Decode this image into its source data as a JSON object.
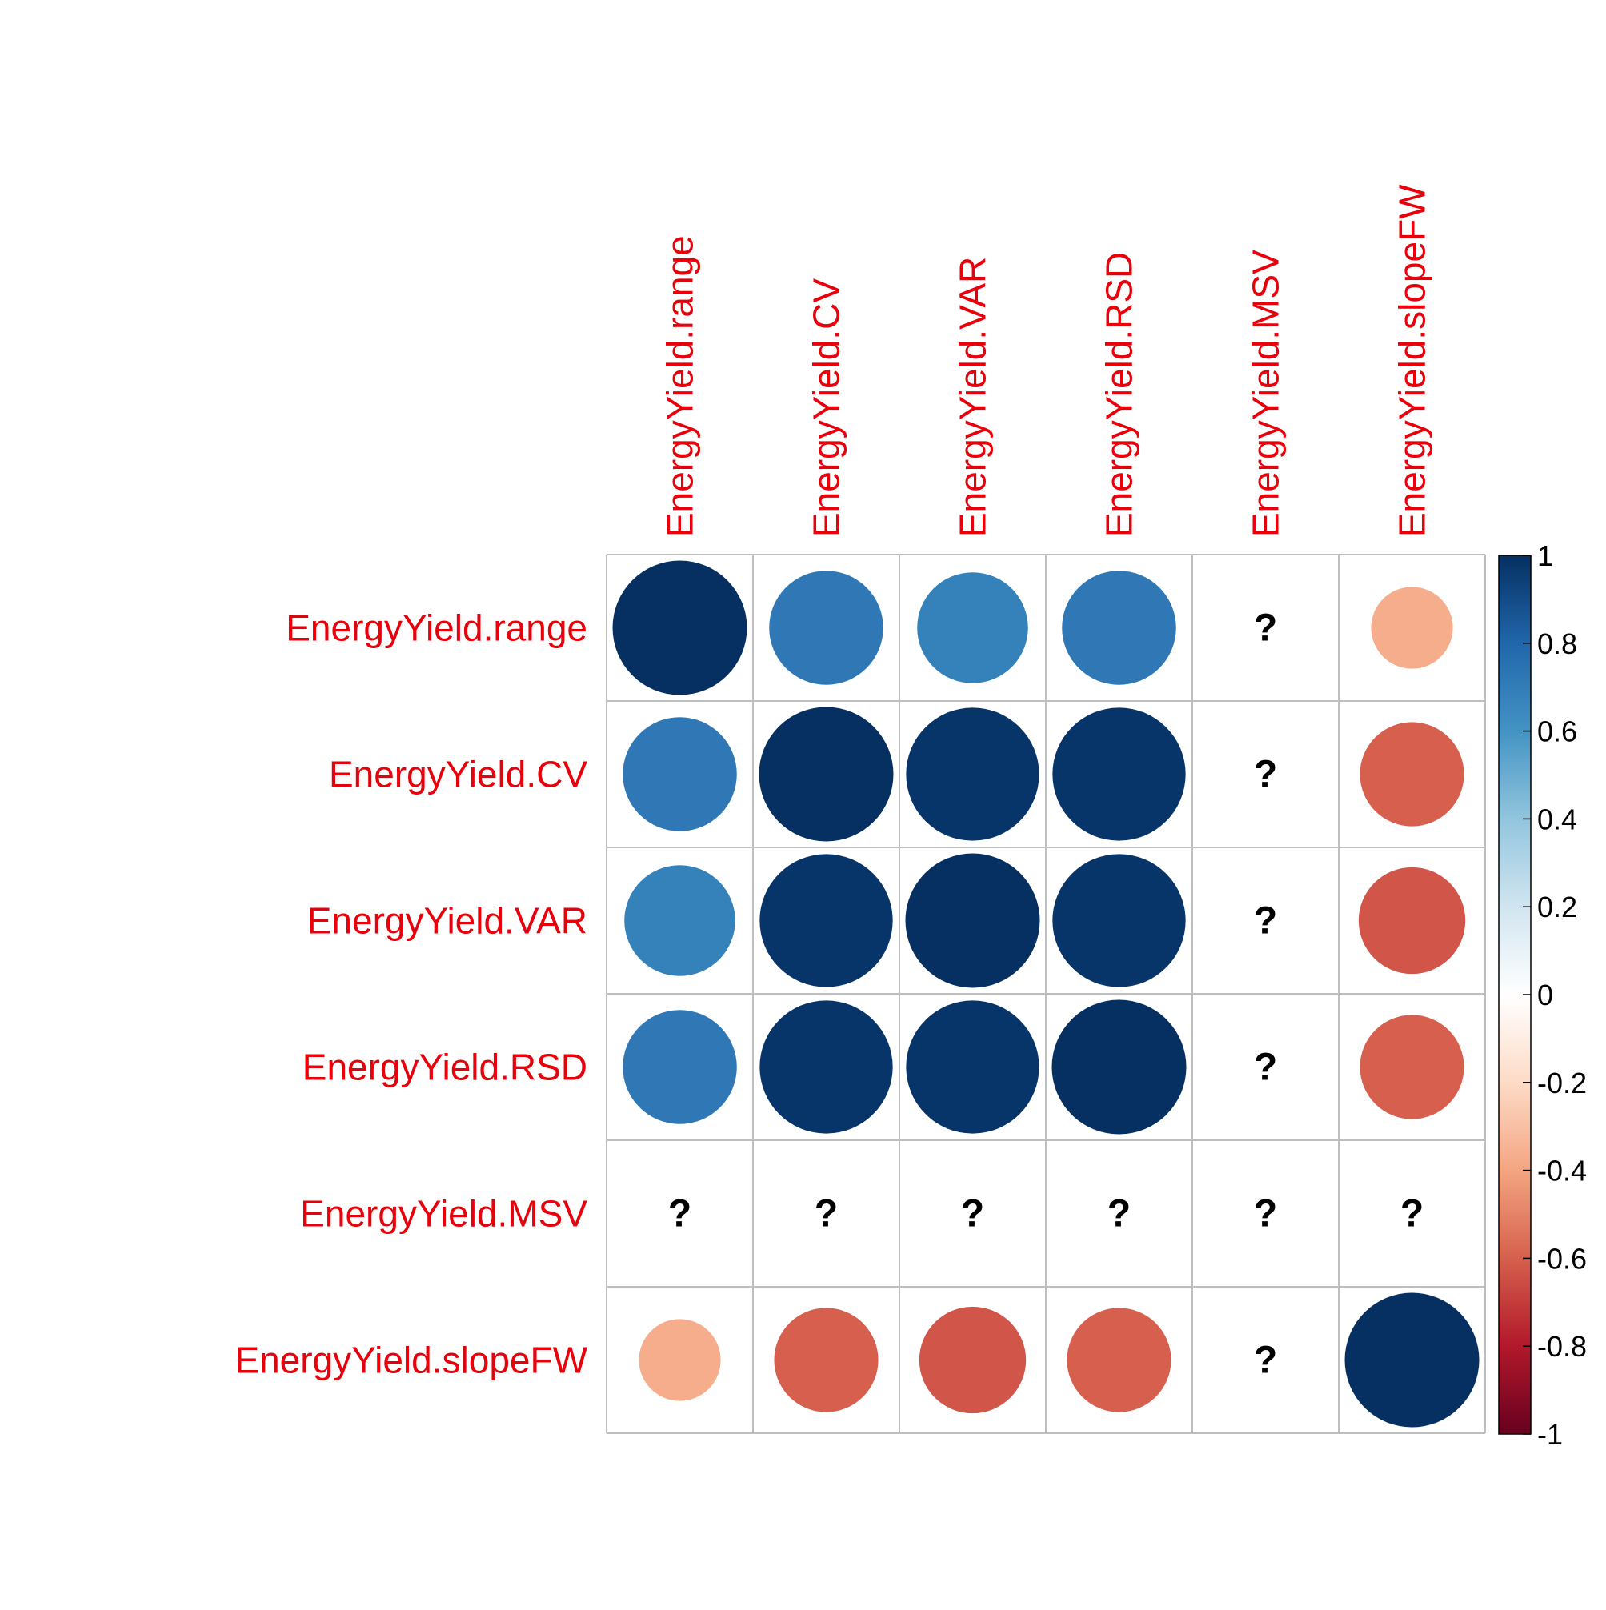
{
  "chart_data": {
    "type": "heatmap",
    "style": "correlation-circle-matrix",
    "variables": [
      "EnergyYield.range",
      "EnergyYield.CV",
      "EnergyYield.VAR",
      "EnergyYield.RSD",
      "EnergyYield.MSV",
      "EnergyYield.slopeFW"
    ],
    "matrix": [
      [
        1.0,
        0.72,
        0.68,
        0.72,
        null,
        -0.37
      ],
      [
        0.72,
        1.0,
        0.98,
        0.98,
        null,
        -0.6
      ],
      [
        0.68,
        0.98,
        1.0,
        0.98,
        null,
        -0.63
      ],
      [
        0.72,
        0.98,
        0.98,
        1.0,
        null,
        -0.6
      ],
      [
        null,
        null,
        null,
        null,
        null,
        null
      ],
      [
        -0.37,
        -0.6,
        -0.63,
        -0.6,
        null,
        1.0
      ]
    ],
    "na_symbol": "?",
    "colorbar": {
      "range": [
        -1,
        1
      ],
      "ticks": [
        "1",
        "0.8",
        "0.6",
        "0.4",
        "0.2",
        "0",
        "-0.2",
        "-0.4",
        "-0.6",
        "-0.8",
        "-1"
      ],
      "colors": {
        "neg1": "#67001F",
        "neg08": "#B2182B",
        "neg06": "#D6604D",
        "neg04": "#F4A582",
        "neg02": "#FDDBC7",
        "zero": "#FFFFFF",
        "pos02": "#D1E5F0",
        "pos04": "#92C5DE",
        "pos06": "#4393C3",
        "pos08": "#2166AC",
        "pos1": "#053061"
      }
    },
    "label_color": "#E8000B",
    "grid": true,
    "legend_position": "right"
  }
}
